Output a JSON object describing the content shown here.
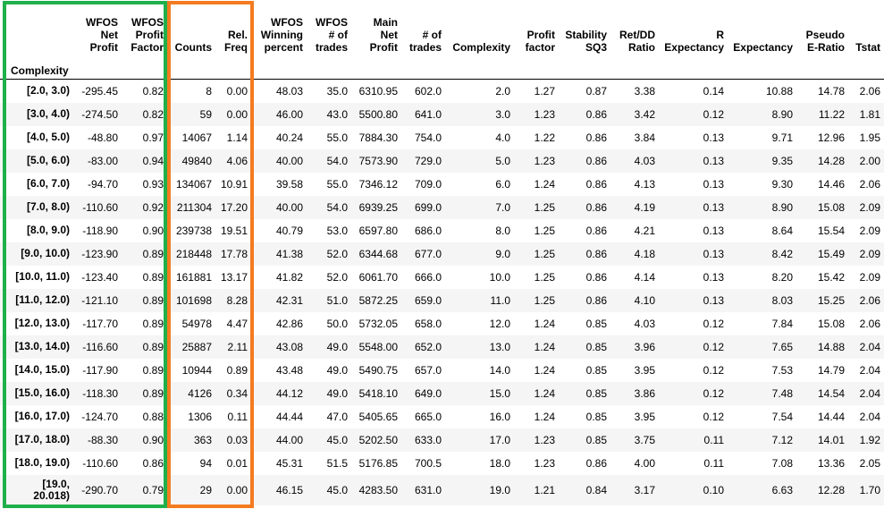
{
  "index_label": "Complexity",
  "columns": [
    [
      "WFOS",
      "Net",
      "Profit"
    ],
    [
      "WFOS",
      "Profit",
      "Factor"
    ],
    [
      "Counts"
    ],
    [
      "Rel.",
      "Freq"
    ],
    [
      "WFOS",
      "Winning",
      "percent"
    ],
    [
      "WFOS",
      "# of",
      "trades"
    ],
    [
      "Main",
      "Net",
      "Profit"
    ],
    [
      "# of",
      "trades"
    ],
    [
      "Complexity"
    ],
    [
      "Profit",
      "factor"
    ],
    [
      "Stability",
      "SQ3"
    ],
    [
      "Ret/DD",
      "Ratio"
    ],
    [
      "R",
      "Expectancy"
    ],
    [
      "Expectancy"
    ],
    [
      "Pseudo",
      "E-Ratio"
    ],
    [
      "Tstat"
    ]
  ],
  "rows": [
    {
      "label": "[2.0, 3.0)",
      "cells": [
        "-295.45",
        "0.82",
        "8",
        "0.00",
        "48.03",
        "35.0",
        "6310.95",
        "602.0",
        "2.0",
        "1.27",
        "0.87",
        "3.38",
        "0.14",
        "10.88",
        "14.78",
        "2.06"
      ]
    },
    {
      "label": "[3.0, 4.0)",
      "cells": [
        "-274.50",
        "0.82",
        "59",
        "0.00",
        "46.00",
        "43.0",
        "5500.80",
        "641.0",
        "3.0",
        "1.23",
        "0.86",
        "3.42",
        "0.12",
        "8.90",
        "11.22",
        "1.81"
      ]
    },
    {
      "label": "[4.0, 5.0)",
      "cells": [
        "-48.80",
        "0.97",
        "14067",
        "1.14",
        "40.24",
        "55.0",
        "7884.30",
        "754.0",
        "4.0",
        "1.22",
        "0.86",
        "3.84",
        "0.13",
        "9.71",
        "12.96",
        "1.95"
      ]
    },
    {
      "label": "[5.0, 6.0)",
      "cells": [
        "-83.00",
        "0.94",
        "49840",
        "4.06",
        "40.00",
        "54.0",
        "7573.90",
        "729.0",
        "5.0",
        "1.23",
        "0.86",
        "4.03",
        "0.13",
        "9.35",
        "14.28",
        "2.00"
      ]
    },
    {
      "label": "[6.0, 7.0)",
      "cells": [
        "-94.70",
        "0.93",
        "134067",
        "10.91",
        "39.58",
        "55.0",
        "7346.12",
        "709.0",
        "6.0",
        "1.24",
        "0.86",
        "4.13",
        "0.13",
        "9.30",
        "14.46",
        "2.06"
      ]
    },
    {
      "label": "[7.0, 8.0)",
      "cells": [
        "-110.60",
        "0.92",
        "211304",
        "17.20",
        "40.00",
        "54.0",
        "6939.25",
        "699.0",
        "7.0",
        "1.25",
        "0.86",
        "4.19",
        "0.13",
        "8.90",
        "15.08",
        "2.09"
      ]
    },
    {
      "label": "[8.0, 9.0)",
      "cells": [
        "-118.90",
        "0.90",
        "239738",
        "19.51",
        "40.79",
        "53.0",
        "6597.80",
        "686.0",
        "8.0",
        "1.25",
        "0.86",
        "4.21",
        "0.13",
        "8.64",
        "15.54",
        "2.09"
      ]
    },
    {
      "label": "[9.0, 10.0)",
      "cells": [
        "-123.90",
        "0.89",
        "218448",
        "17.78",
        "41.38",
        "52.0",
        "6344.68",
        "677.0",
        "9.0",
        "1.25",
        "0.86",
        "4.18",
        "0.13",
        "8.42",
        "15.49",
        "2.09"
      ]
    },
    {
      "label": "[10.0, 11.0)",
      "cells": [
        "-123.40",
        "0.89",
        "161881",
        "13.17",
        "41.82",
        "52.0",
        "6061.70",
        "666.0",
        "10.0",
        "1.25",
        "0.86",
        "4.14",
        "0.13",
        "8.20",
        "15.42",
        "2.09"
      ]
    },
    {
      "label": "[11.0, 12.0)",
      "cells": [
        "-121.10",
        "0.89",
        "101698",
        "8.28",
        "42.31",
        "51.0",
        "5872.25",
        "659.0",
        "11.0",
        "1.25",
        "0.86",
        "4.10",
        "0.13",
        "8.03",
        "15.25",
        "2.06"
      ]
    },
    {
      "label": "[12.0, 13.0)",
      "cells": [
        "-117.70",
        "0.89",
        "54978",
        "4.47",
        "42.86",
        "50.0",
        "5732.05",
        "658.0",
        "12.0",
        "1.24",
        "0.85",
        "4.03",
        "0.12",
        "7.84",
        "15.08",
        "2.06"
      ]
    },
    {
      "label": "[13.0, 14.0)",
      "cells": [
        "-116.60",
        "0.89",
        "25887",
        "2.11",
        "43.08",
        "49.0",
        "5548.00",
        "652.0",
        "13.0",
        "1.24",
        "0.85",
        "3.96",
        "0.12",
        "7.65",
        "14.88",
        "2.04"
      ]
    },
    {
      "label": "[14.0, 15.0)",
      "cells": [
        "-117.90",
        "0.89",
        "10944",
        "0.89",
        "43.48",
        "49.0",
        "5490.75",
        "657.0",
        "14.0",
        "1.24",
        "0.85",
        "3.95",
        "0.12",
        "7.53",
        "14.79",
        "2.04"
      ]
    },
    {
      "label": "[15.0, 16.0)",
      "cells": [
        "-118.30",
        "0.89",
        "4126",
        "0.34",
        "44.12",
        "49.0",
        "5418.10",
        "649.0",
        "15.0",
        "1.24",
        "0.85",
        "3.86",
        "0.12",
        "7.48",
        "14.54",
        "2.04"
      ]
    },
    {
      "label": "[16.0, 17.0)",
      "cells": [
        "-124.70",
        "0.88",
        "1306",
        "0.11",
        "44.44",
        "47.0",
        "5405.65",
        "665.0",
        "16.0",
        "1.24",
        "0.85",
        "3.95",
        "0.12",
        "7.54",
        "14.44",
        "2.04"
      ]
    },
    {
      "label": "[17.0, 18.0)",
      "cells": [
        "-88.30",
        "0.90",
        "363",
        "0.03",
        "44.00",
        "45.0",
        "5202.50",
        "633.0",
        "17.0",
        "1.23",
        "0.85",
        "3.75",
        "0.11",
        "7.12",
        "14.01",
        "1.92"
      ]
    },
    {
      "label": "[18.0, 19.0)",
      "cells": [
        "-110.60",
        "0.86",
        "94",
        "0.01",
        "45.31",
        "51.5",
        "5176.85",
        "700.5",
        "18.0",
        "1.23",
        "0.86",
        "4.00",
        "0.11",
        "7.08",
        "13.36",
        "2.05"
      ]
    },
    {
      "label": "[19.0, 20.018)",
      "cells": [
        "-290.70",
        "0.79",
        "29",
        "0.00",
        "46.15",
        "45.0",
        "4283.50",
        "631.0",
        "19.0",
        "1.21",
        "0.84",
        "3.17",
        "0.10",
        "6.63",
        "12.28",
        "1.70"
      ]
    }
  ],
  "highlights": {
    "green": "#1fb04b",
    "orange": "#f47b20"
  }
}
